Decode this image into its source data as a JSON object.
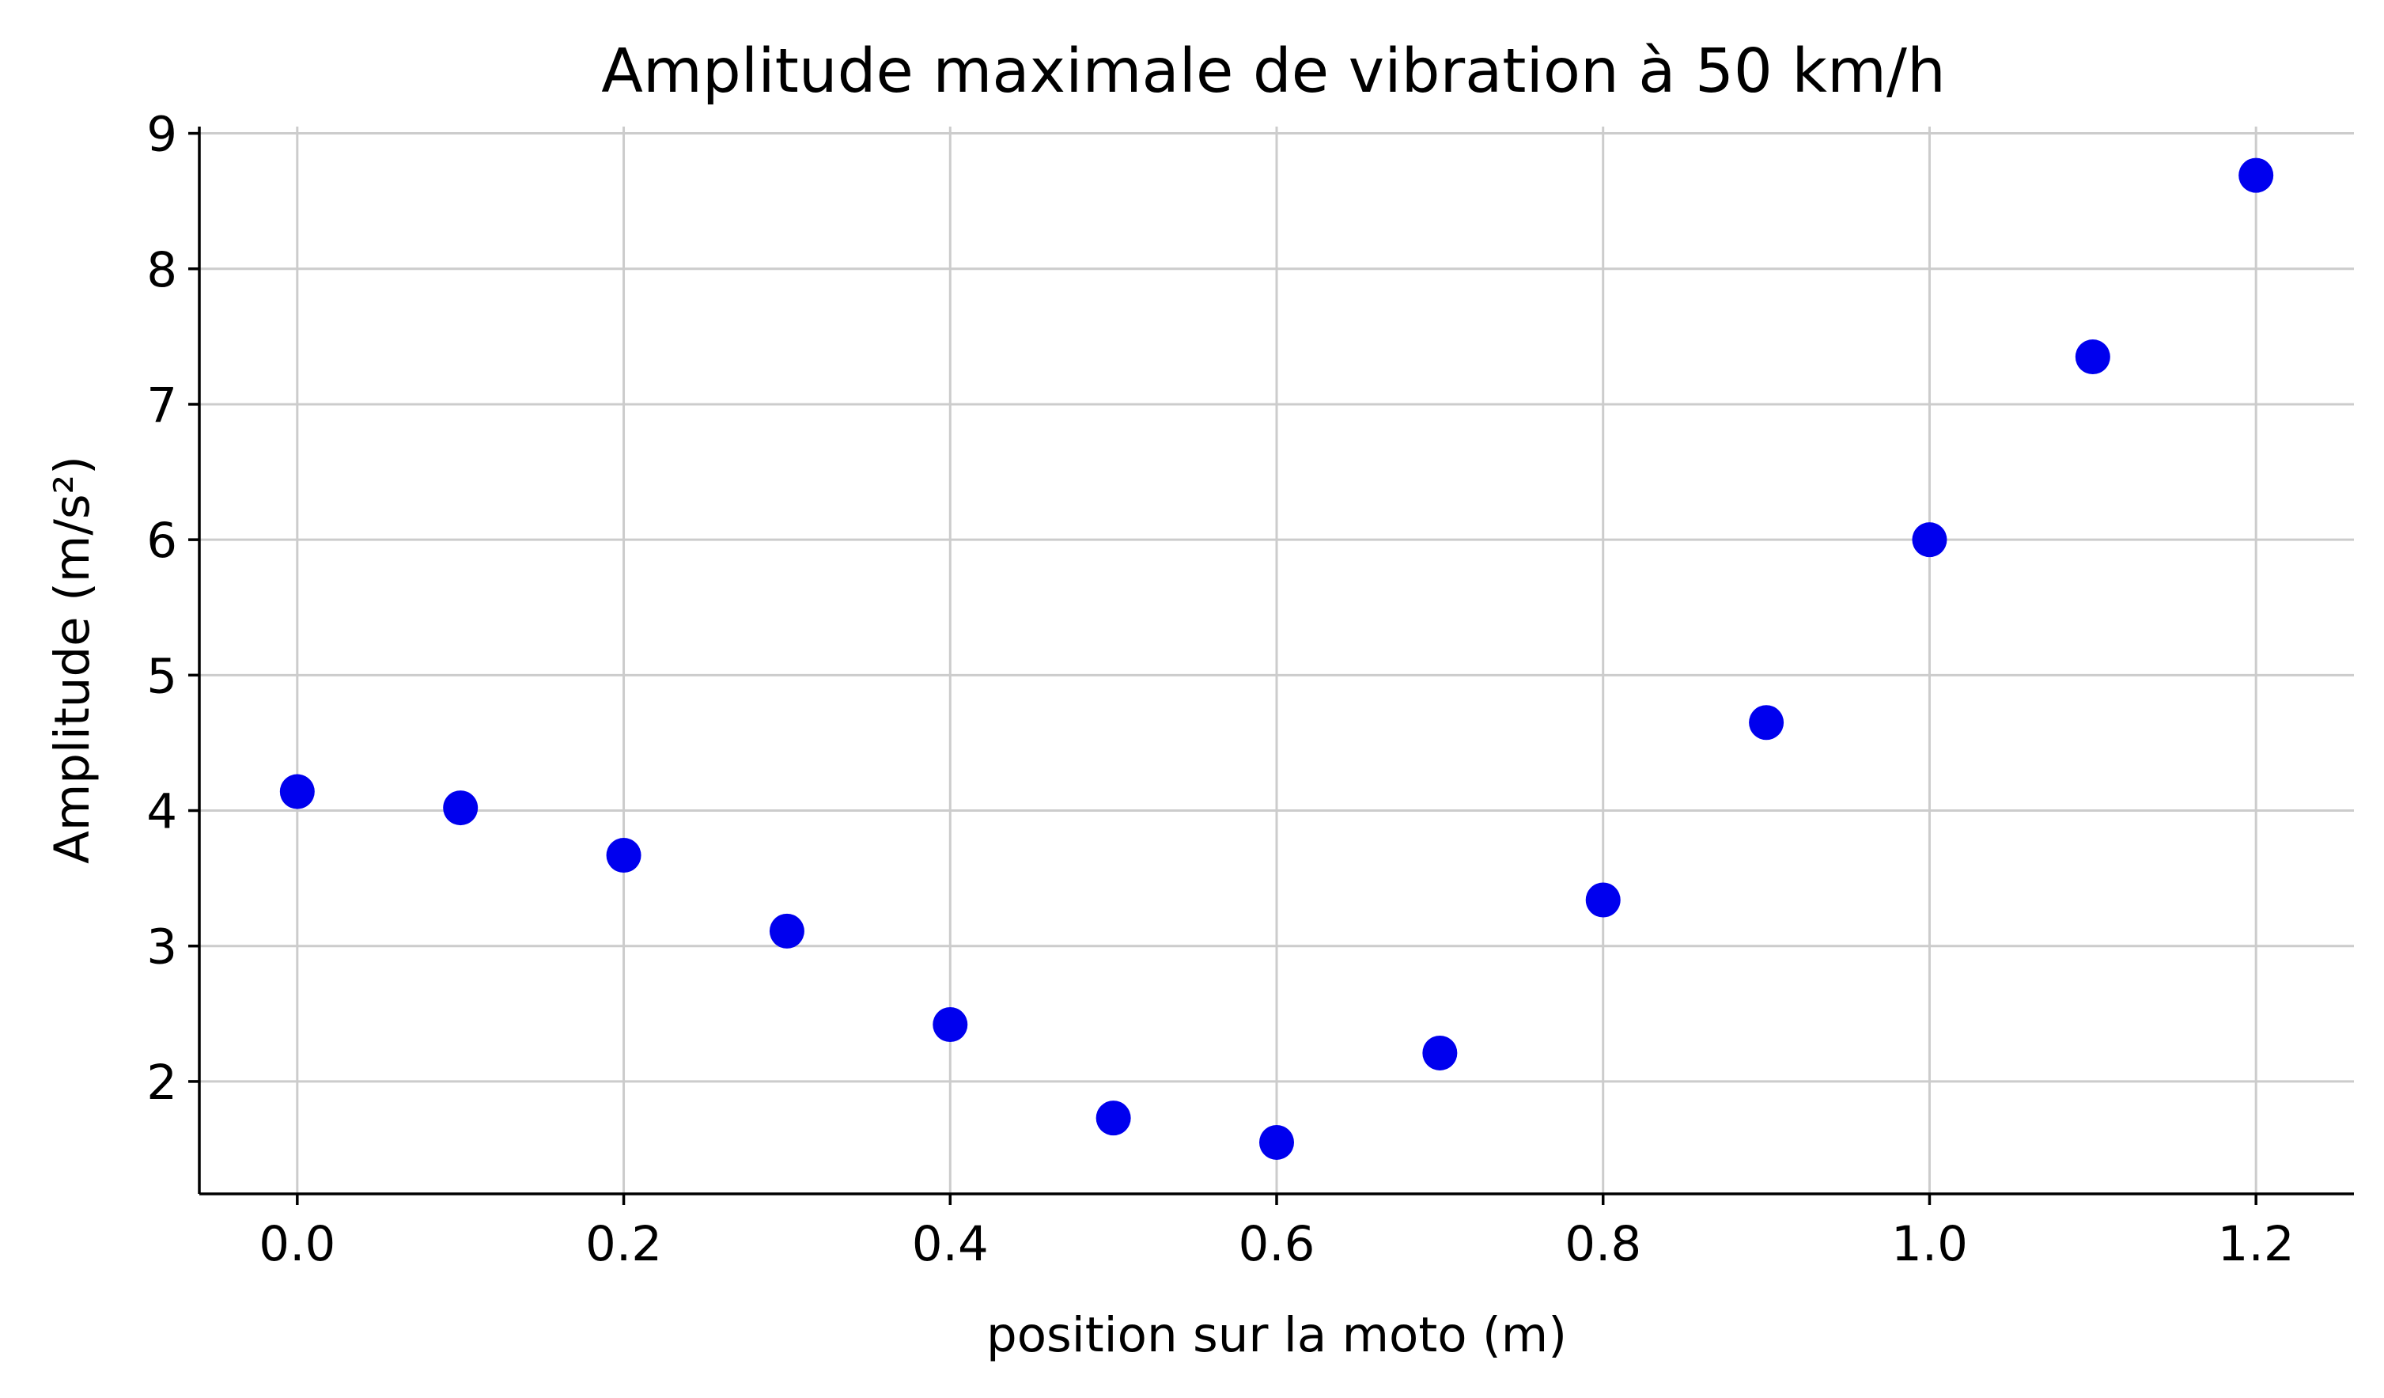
{
  "chart_data": {
    "type": "scatter",
    "title": "Amplitude maximale de vibration à 50 km/h",
    "xlabel": "position sur la moto (m)",
    "ylabel": "Amplitude (m/s²)",
    "xlim": [
      -0.06,
      1.26
    ],
    "ylim": [
      1.17,
      9.05
    ],
    "xticks": [
      0.0,
      0.2,
      0.4,
      0.6,
      0.8,
      1.0,
      1.2
    ],
    "xtick_labels": [
      "0.0",
      "0.2",
      "0.4",
      "0.6",
      "0.8",
      "1.0",
      "1.2"
    ],
    "yticks": [
      2,
      3,
      4,
      5,
      6,
      7,
      8,
      9
    ],
    "ytick_labels": [
      "2",
      "3",
      "4",
      "5",
      "6",
      "7",
      "8",
      "9"
    ],
    "grid": true,
    "marker_color": "#0000ee",
    "series": [
      {
        "x": [
          0.0,
          0.1,
          0.2,
          0.3,
          0.4,
          0.5,
          0.6,
          0.7,
          0.8,
          0.9,
          1.0,
          1.1,
          1.2
        ],
        "y": [
          4.14,
          4.02,
          3.67,
          3.11,
          2.42,
          1.73,
          1.55,
          2.21,
          3.34,
          4.65,
          6.0,
          7.35,
          8.69
        ]
      }
    ]
  }
}
